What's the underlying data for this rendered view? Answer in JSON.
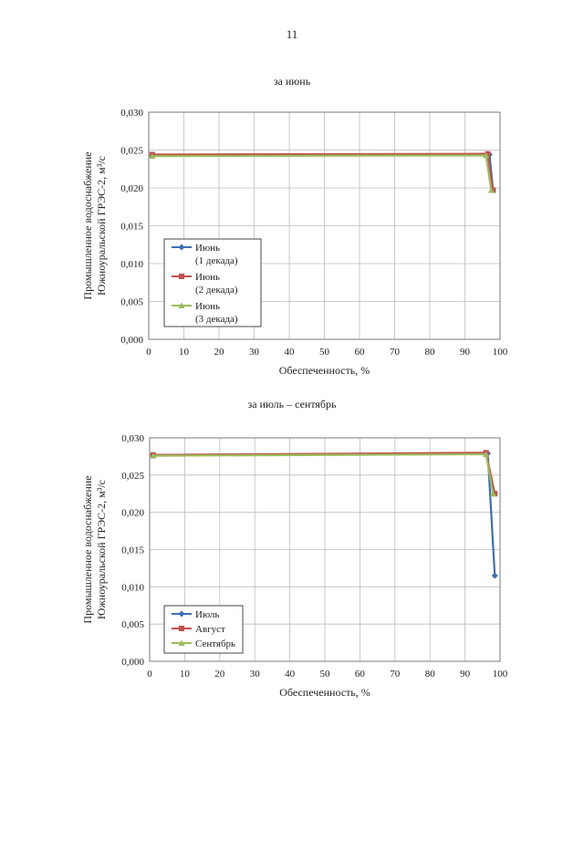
{
  "page": {
    "number": "11"
  },
  "chart_data": [
    {
      "type": "line",
      "title": "за июнь",
      "xlabel": "Обеспеченность, %",
      "ylabel": [
        "Промышленное водоснабжение",
        "Южноуральской ГРЭС-2, м³/с"
      ],
      "xlim": [
        0,
        100
      ],
      "ylim": [
        0,
        0.03
      ],
      "xticks": [
        "0",
        "10",
        "20",
        "30",
        "40",
        "50",
        "60",
        "70",
        "80",
        "90",
        "100"
      ],
      "yticks": [
        "0,000",
        "0,005",
        "0,010",
        "0,015",
        "0,020",
        "0,025",
        "0,030"
      ],
      "grid": true,
      "legend_position": "left",
      "series": [
        {
          "name": "Июнь (1 декада)",
          "name_lines": [
            "Июнь",
            "(1 декада)"
          ],
          "color": "#3b6fb6",
          "marker": "diamond",
          "x": [
            1,
            97,
            98
          ],
          "y": [
            0.0243,
            0.0244,
            0.0197
          ]
        },
        {
          "name": "Июнь (2 декада)",
          "name_lines": [
            "Июнь",
            "(2 декада)"
          ],
          "color": "#c0504d",
          "marker": "square",
          "x": [
            1,
            96.5,
            98
          ],
          "y": [
            0.0244,
            0.0245,
            0.0197
          ]
        },
        {
          "name": "Июнь (3 декада)",
          "name_lines": [
            "Июнь",
            "(3 декада)"
          ],
          "color": "#9bbb59",
          "marker": "triangle",
          "x": [
            1,
            96,
            97.5
          ],
          "y": [
            0.0242,
            0.0243,
            0.0197
          ]
        }
      ]
    },
    {
      "type": "line",
      "title": "за июль – сентябрь",
      "xlabel": "Обеспеченность, %",
      "ylabel": [
        "Промышленное водоснабжение",
        "Южноуральской ГРЭС-2, м³/с"
      ],
      "xlim": [
        0,
        100
      ],
      "ylim": [
        0,
        0.03
      ],
      "xticks": [
        "0",
        "10",
        "20",
        "30",
        "40",
        "50",
        "60",
        "70",
        "80",
        "90",
        "100"
      ],
      "yticks": [
        "0,000",
        "0,005",
        "0,010",
        "0,015",
        "0,020",
        "0,025",
        "0,030"
      ],
      "grid": true,
      "legend_position": "bottom-left",
      "series": [
        {
          "name": "Июль",
          "name_lines": [
            "Июль"
          ],
          "color": "#3b6fb6",
          "marker": "diamond",
          "x": [
            1,
            96.5,
            98.5
          ],
          "y": [
            0.0277,
            0.0279,
            0.0115
          ]
        },
        {
          "name": "Август",
          "name_lines": [
            "Август"
          ],
          "color": "#c0504d",
          "marker": "square",
          "x": [
            1,
            96,
            98.5
          ],
          "y": [
            0.0277,
            0.028,
            0.0225
          ]
        },
        {
          "name": "Сентябрь",
          "name_lines": [
            "Сентябрь"
          ],
          "color": "#9bbb59",
          "marker": "triangle",
          "x": [
            1,
            96,
            98
          ],
          "y": [
            0.0276,
            0.0278,
            0.0225
          ]
        }
      ]
    }
  ]
}
